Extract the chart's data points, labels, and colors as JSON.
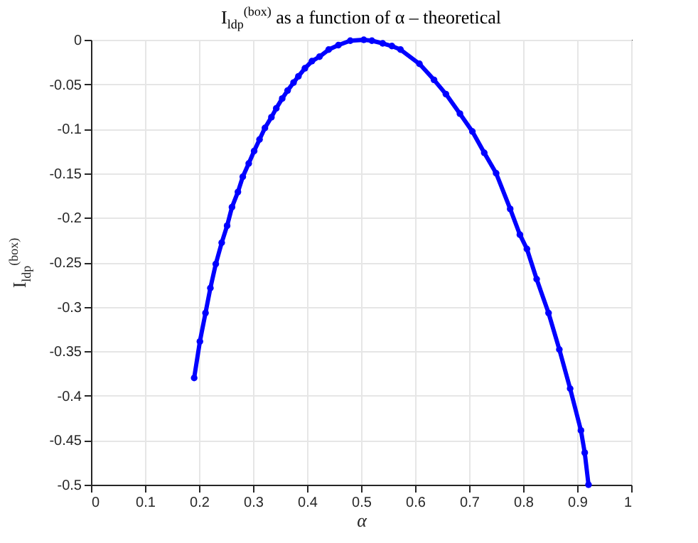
{
  "chart_data": {
    "type": "line",
    "title": "I$_{ldp}$$^{(box)}$ as a function of α – theoretical",
    "xlabel": "α",
    "ylabel": "I$_{ldp}$$^{(box)}$",
    "x": [
      0.191,
      0.2016,
      0.212,
      0.221,
      0.231,
      0.242,
      0.252,
      0.261,
      0.272,
      0.281,
      0.292,
      0.302,
      0.312,
      0.322,
      0.334,
      0.343,
      0.354,
      0.364,
      0.375,
      0.384,
      0.396,
      0.409,
      0.423,
      0.44,
      0.458,
      0.48,
      0.505,
      0.52,
      0.54,
      0.557,
      0.573,
      0.608,
      0.635,
      0.657,
      0.683,
      0.706,
      0.728,
      0.75,
      0.776,
      0.794,
      0.807,
      0.825,
      0.847,
      0.867,
      0.887,
      0.907,
      0.914,
      0.921
    ],
    "series": [
      {
        "color": "#0000ff",
        "values": [
          -0.38,
          -0.339,
          -0.307,
          -0.279,
          -0.252,
          -0.228,
          -0.209,
          -0.188,
          -0.171,
          -0.154,
          -0.139,
          -0.125,
          -0.112,
          -0.099,
          -0.087,
          -0.077,
          -0.066,
          -0.057,
          -0.048,
          -0.041,
          -0.032,
          -0.024,
          -0.019,
          -0.011,
          -0.006,
          -0.001,
          0,
          -0.001,
          -0.004,
          -0.007,
          -0.011,
          -0.027,
          -0.045,
          -0.061,
          -0.083,
          -0.103,
          -0.127,
          -0.15,
          -0.19,
          -0.219,
          -0.235,
          -0.269,
          -0.307,
          -0.348,
          -0.392,
          -0.439,
          -0.464,
          -0.5
        ]
      }
    ],
    "xlim": [
      0,
      1
    ],
    "xticks": [
      0,
      0.1,
      0.2,
      0.3,
      0.4,
      0.5,
      0.6,
      0.7,
      0.8,
      0.9,
      1
    ],
    "ylim": [
      -0.5,
      0
    ],
    "yticks": [
      0,
      -0.05,
      -0.1,
      -0.15,
      -0.2,
      -0.25,
      -0.3,
      -0.35,
      -0.4,
      -0.45,
      -0.5
    ],
    "grid": true,
    "marker": "circle",
    "line_style": "solid"
  }
}
